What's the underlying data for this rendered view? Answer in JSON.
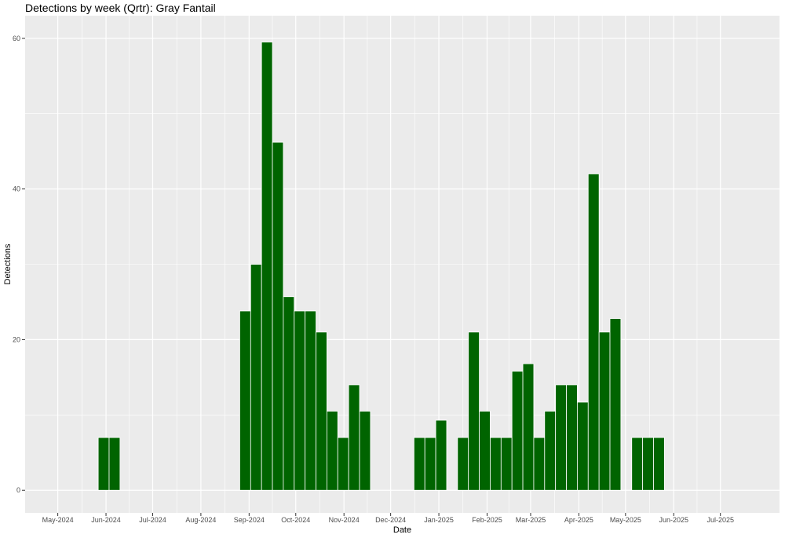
{
  "chart_data": {
    "type": "bar",
    "title": "Detections by week (Qrtr): Gray Fantail",
    "xlabel": "Date",
    "ylabel": "Detections",
    "x_tick_labels": [
      "May-2024",
      "Jun-2024",
      "Jul-2024",
      "Aug-2024",
      "Sep-2024",
      "Oct-2024",
      "Nov-2024",
      "Dec-2024",
      "Jan-2025",
      "Feb-2025",
      "Mar-2025",
      "Apr-2025",
      "May-2025",
      "Jun-2025",
      "Jul-2025"
    ],
    "y_ticks": [
      0,
      20,
      40,
      60
    ],
    "ylim": [
      -3,
      63
    ],
    "xlim": [
      "2024-04-10",
      "2025-08-08"
    ],
    "grid": true,
    "bar_color": "#006400",
    "panel_background": "#ebebeb",
    "series": [
      {
        "weeks": [
          "2024-05-27",
          "2024-06-03",
          "2024-08-26",
          "2024-09-02",
          "2024-09-09",
          "2024-09-16",
          "2024-09-23",
          "2024-09-30",
          "2024-10-07",
          "2024-10-14",
          "2024-10-21",
          "2024-10-28",
          "2024-11-04",
          "2024-11-11",
          "2024-12-16",
          "2024-12-23",
          "2024-12-30",
          "2025-01-13",
          "2025-01-20",
          "2025-01-27",
          "2025-02-03",
          "2025-02-10",
          "2025-02-17",
          "2025-02-24",
          "2025-03-03",
          "2025-03-10",
          "2025-03-17",
          "2025-03-24",
          "2025-03-31",
          "2025-04-07",
          "2025-04-14",
          "2025-04-21",
          "2025-05-05",
          "2025-05-12",
          "2025-05-19"
        ],
        "values": [
          7,
          7,
          23.8,
          30,
          59.5,
          46.2,
          25.7,
          23.8,
          23.8,
          21,
          10.5,
          7,
          14,
          10.5,
          7,
          7,
          9.3,
          7,
          21,
          10.5,
          7,
          7,
          15.8,
          16.8,
          7,
          10.5,
          14,
          14,
          11.7,
          42,
          21,
          22.8,
          7,
          7,
          7
        ]
      }
    ]
  }
}
